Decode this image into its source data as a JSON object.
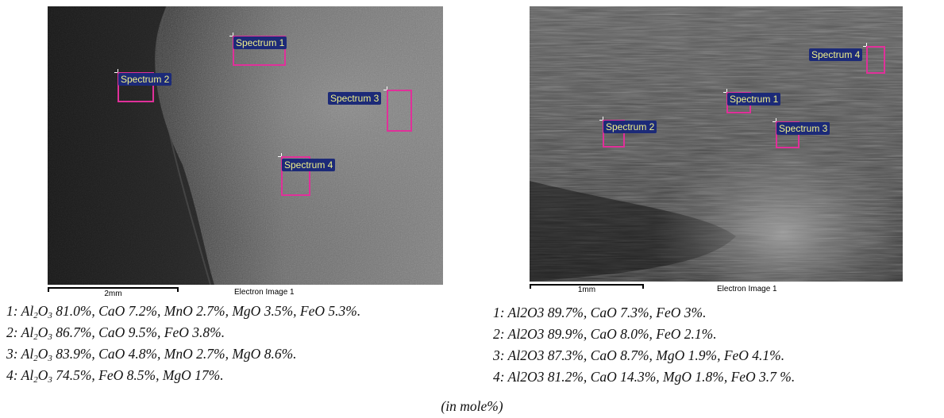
{
  "left_image": {
    "footer_label": "Electron Image 1",
    "scale_label": "2mm",
    "spectra": [
      "Spectrum 1",
      "Spectrum 2",
      "Spectrum 3",
      "Spectrum 4"
    ]
  },
  "right_image": {
    "footer_label": "Electron Image 1",
    "scale_label": "1mm",
    "spectra": [
      "Spectrum 1",
      "Spectrum 2",
      "Spectrum 3",
      "Spectrum 4"
    ]
  },
  "left_compositions": [
    {
      "num": "1: ",
      "ox": "Al",
      "s1": "2",
      "o": "O",
      "s2": "3",
      "rest": " 81.0%, CaO 7.2%, MnO 2.7%, MgO 3.5%, FeO 5.3%."
    },
    {
      "num": "2: ",
      "ox": "Al",
      "s1": "2",
      "o": "O",
      "s2": "3",
      "rest": " 86.7%, CaO 9.5%, FeO 3.8%."
    },
    {
      "num": "3: ",
      "ox": "Al",
      "s1": "2",
      "o": "O",
      "s2": "3",
      "rest": " 83.9%, CaO 4.8%, MnO 2.7%, MgO 8.6%."
    },
    {
      "num": "4: ",
      "ox": "Al",
      "s1": "2",
      "o": "O",
      "s2": "3",
      "rest": " 74.5%, FeO 8.5%, MgO 17%."
    }
  ],
  "right_compositions": [
    "1: Al2O3 89.7%, CaO 7.3%, FeO 3%.",
    "2: Al2O3 89.9%, CaO 8.0%, FeO 2.1%.",
    "3: Al2O3 87.3%, CaO 8.7%, MgO 1.9%, FeO 4.1%.",
    "4: Al2O3 81.2%, CaO 14.3%, MgO 1.8%, FeO 3.7 %."
  ],
  "unit_note": "(in mole%)"
}
